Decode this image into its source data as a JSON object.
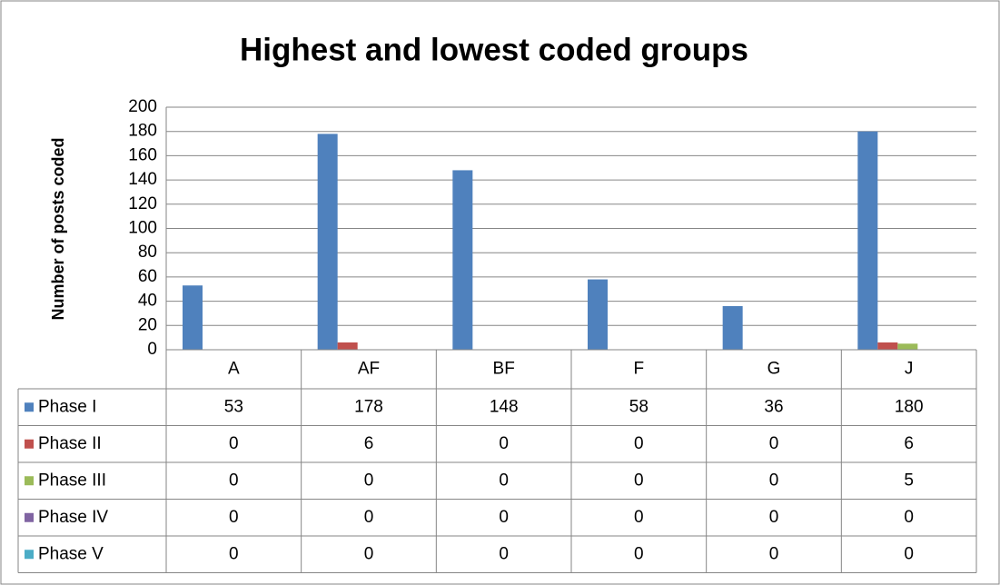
{
  "chart_data": {
    "type": "bar",
    "title": "Highest and lowest coded groups",
    "y_axis_label": "Number of posts coded",
    "categories": [
      "A",
      "AF",
      "BF",
      "F",
      "G",
      "J"
    ],
    "series": [
      {
        "name": "Phase I",
        "color": "#4f81bd",
        "values": [
          53,
          178,
          148,
          58,
          36,
          180
        ]
      },
      {
        "name": "Phase II",
        "color": "#c0504d",
        "values": [
          0,
          6,
          0,
          0,
          0,
          6
        ]
      },
      {
        "name": "Phase III",
        "color": "#9bbb59",
        "values": [
          0,
          0,
          0,
          0,
          0,
          5
        ]
      },
      {
        "name": "Phase IV",
        "color": "#8064a2",
        "values": [
          0,
          0,
          0,
          0,
          0,
          0
        ]
      },
      {
        "name": "Phase V",
        "color": "#4bacc6",
        "values": [
          0,
          0,
          0,
          0,
          0,
          0
        ]
      }
    ],
    "ylim": [
      0,
      200
    ],
    "yticks": [
      0,
      20,
      40,
      60,
      80,
      100,
      120,
      140,
      160,
      180,
      200
    ],
    "grid": true
  }
}
